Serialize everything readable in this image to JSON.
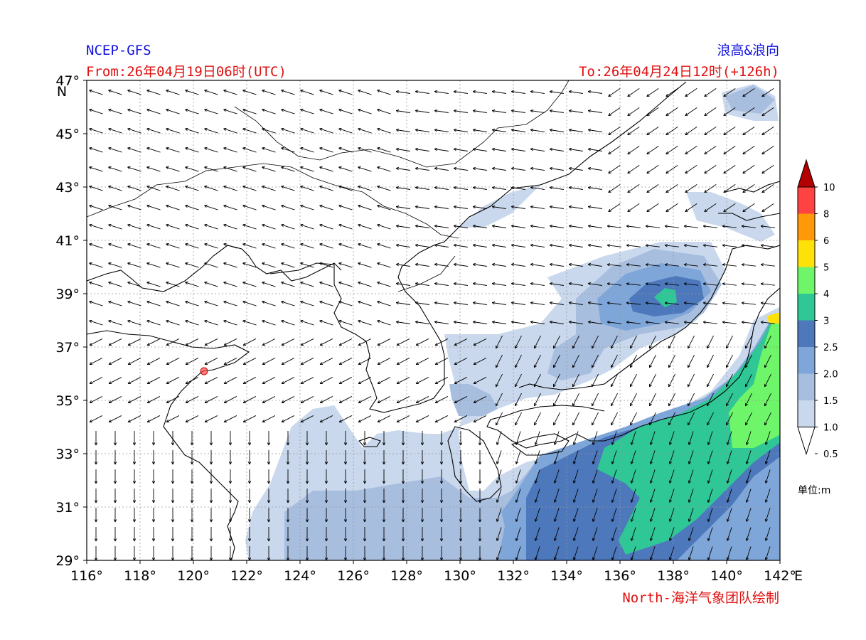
{
  "header": {
    "model": "NCEP-GFS",
    "product": "浪高&浪向",
    "from": "From:26年04月19日06时(UTC)",
    "to": "To:26年04月24日12时(+126h)"
  },
  "footer": {
    "credit": "North-海洋气象团队绘制"
  },
  "axes": {
    "lon_labels": [
      "116°",
      "118°",
      "120°",
      "122°",
      "124°",
      "126°",
      "128°",
      "130°",
      "132°",
      "134°",
      "136°",
      "138°",
      "140°",
      "142°"
    ],
    "lon_unit": "E",
    "lat_labels": [
      "47°",
      "45°",
      "43°",
      "41°",
      "39°",
      "37°",
      "35°",
      "33°",
      "31°",
      "29°"
    ],
    "lat_unit": "N",
    "lon_range": [
      116,
      142
    ],
    "lat_range": [
      29,
      47
    ]
  },
  "colorbar": {
    "unit_label": "单位:m",
    "levels": [
      "0.5",
      "1.0",
      "1.5",
      "2.0",
      "2.5",
      "3",
      "4",
      "5",
      "6",
      "8",
      "10"
    ],
    "colors": [
      "#ffffff",
      "#c9d8ec",
      "#a8bedf",
      "#7fa6d9",
      "#4d78bb",
      "#2fc796",
      "#6ff56a",
      "#ffe10a",
      "#ff9908",
      "#ff4242",
      "#b30000"
    ]
  },
  "marker": {
    "color": "#ff3030"
  }
}
